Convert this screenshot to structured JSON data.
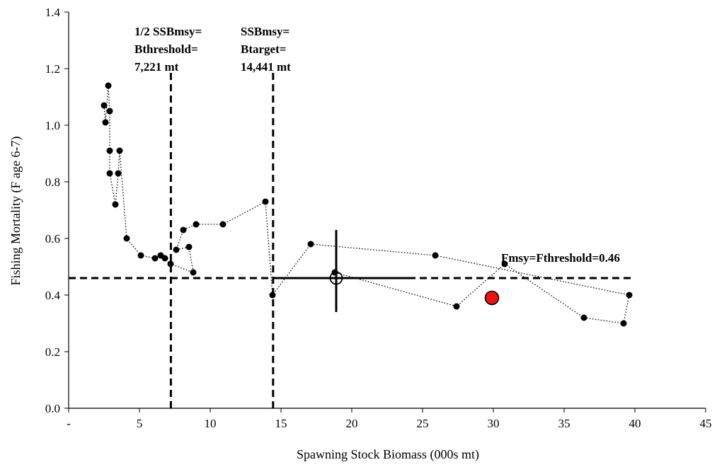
{
  "chart_data": {
    "type": "scatter",
    "title": "",
    "xlabel": "Spawning Stock Biomass (000s mt)",
    "ylabel": "Fishing Mortality (F age 6-7)",
    "xlim": [
      0,
      45
    ],
    "ylim": [
      0,
      1.4
    ],
    "x_tick_labels": [
      "-",
      "5",
      "10",
      "15",
      "20",
      "25",
      "30",
      "35",
      "40",
      "45"
    ],
    "x_tick_values": [
      0,
      5,
      10,
      15,
      20,
      25,
      30,
      35,
      40,
      45
    ],
    "y_tick_labels": [
      "0.0",
      "0.2",
      "0.4",
      "0.6",
      "0.8",
      "1.0",
      "1.2",
      "1.4"
    ],
    "y_tick_values": [
      0,
      0.2,
      0.4,
      0.6,
      0.8,
      1.0,
      1.2,
      1.4
    ],
    "grid": false,
    "legend": "none",
    "series": [
      {
        "line_style": "dotted",
        "marker_color": "#000000",
        "points": [
          [
            2.5,
            1.07
          ],
          [
            2.6,
            1.01
          ],
          [
            2.8,
            1.14
          ],
          [
            2.9,
            1.05
          ],
          [
            2.9,
            0.91
          ],
          [
            2.9,
            0.83
          ],
          [
            3.3,
            0.72
          ],
          [
            3.5,
            0.83
          ],
          [
            3.6,
            0.91
          ],
          [
            4.1,
            0.6
          ],
          [
            5.1,
            0.54
          ],
          [
            6.1,
            0.53
          ],
          [
            6.5,
            0.54
          ],
          [
            6.8,
            0.53
          ],
          [
            7.2,
            0.51
          ],
          [
            8.8,
            0.48
          ],
          [
            8.5,
            0.57
          ],
          [
            7.6,
            0.56
          ],
          [
            8.1,
            0.63
          ],
          [
            9.0,
            0.65
          ],
          [
            10.9,
            0.65
          ],
          [
            13.9,
            0.73
          ],
          [
            14.4,
            0.4
          ],
          [
            17.1,
            0.58
          ],
          [
            25.9,
            0.54
          ],
          [
            39.6,
            0.4
          ],
          [
            39.2,
            0.3
          ],
          [
            36.4,
            0.32
          ],
          [
            30.8,
            0.51
          ],
          [
            27.4,
            0.36
          ],
          [
            18.8,
            0.48
          ]
        ]
      }
    ],
    "terminal_estimate": {
      "x": 18.9,
      "y": 0.46,
      "x_ci": [
        14.6,
        24.1
      ],
      "y_ci": [
        0.34,
        0.63
      ]
    },
    "adjusted_point": {
      "x": 29.9,
      "y": 0.39,
      "color": "#ee1111"
    },
    "reference_lines": {
      "fmsy": {
        "value": 0.46,
        "x_range": [
          0,
          40
        ],
        "label": "Fmsy=Fthreshold=0.46"
      },
      "bthreshold": {
        "value": 7.221,
        "y_range": [
          0,
          1.2
        ],
        "label_lines": [
          "1/2 SSBmsy=",
          "Bthreshold=",
          "7,221 mt"
        ]
      },
      "btarget": {
        "value": 14.441,
        "y_range": [
          0,
          1.2
        ],
        "label_lines": [
          "SSBmsy=",
          "Btarget=",
          "14,441 mt"
        ]
      }
    }
  }
}
